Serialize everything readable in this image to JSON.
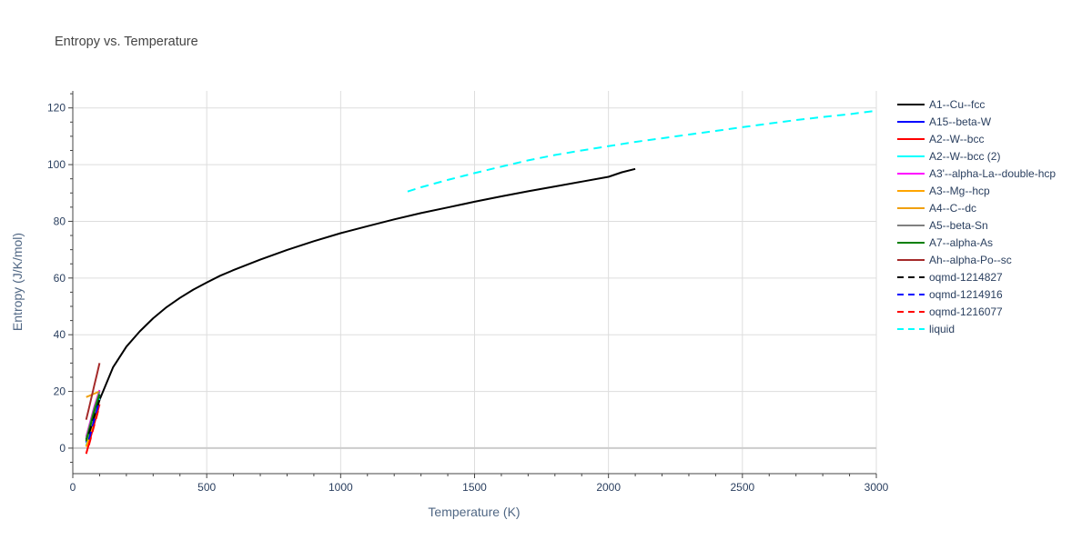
{
  "chart_data": {
    "type": "line",
    "title": "Entropy vs. Temperature",
    "xlabel": "Temperature (K)",
    "ylabel": "Entropy (J/K/mol)",
    "xlim": [
      0,
      3000
    ],
    "ylim": [
      -9,
      126
    ],
    "xticks": [
      0,
      500,
      1000,
      1500,
      2000,
      2500,
      3000
    ],
    "xtick_labels": [
      "0",
      "500",
      "1000",
      "1500",
      "2000",
      "2500",
      "3000"
    ],
    "yticks": [
      0,
      20,
      40,
      60,
      80,
      100,
      120
    ],
    "ytick_labels": [
      "0",
      "20",
      "40",
      "60",
      "80",
      "100",
      "120"
    ],
    "grid": true,
    "legend_position": "right",
    "series": [
      {
        "name": "A1--Cu--fcc",
        "color": "#000000",
        "dash": "solid",
        "x": [
          50,
          75,
          100,
          150,
          200,
          250,
          300,
          350,
          400,
          450,
          500,
          550,
          600,
          700,
          800,
          900,
          1000,
          1100,
          1200,
          1300,
          1400,
          1500,
          1600,
          1700,
          1800,
          1900,
          2000,
          2050,
          2100
        ],
        "y": [
          3,
          10,
          17,
          28.5,
          35.8,
          41.2,
          45.8,
          49.7,
          53,
          55.9,
          58.4,
          60.8,
          62.8,
          66.5,
          69.9,
          73,
          75.8,
          78.3,
          80.7,
          82.9,
          84.9,
          86.9,
          88.8,
          90.6,
          92.3,
          94,
          95.7,
          97.3,
          98.5
        ]
      },
      {
        "name": "A15--beta-W",
        "color": "#0000ff",
        "dash": "solid",
        "x": [
          50,
          60,
          70,
          80,
          90,
          100
        ],
        "y": [
          2,
          5,
          8.5,
          12,
          15.5,
          19
        ]
      },
      {
        "name": "A2--W--bcc",
        "color": "#ff0000",
        "dash": "solid",
        "x": [
          50,
          60,
          70,
          80,
          90,
          100
        ],
        "y": [
          -2,
          1.5,
          5,
          8.5,
          12,
          15.5
        ]
      },
      {
        "name": "A2--W--bcc (2)",
        "color": "#00ffff",
        "dash": "solid",
        "x": [
          50,
          60,
          70,
          80,
          90,
          100
        ],
        "y": [
          1,
          4,
          7,
          10.5,
          14,
          17.5
        ]
      },
      {
        "name": "A3'--alpha-La--double-hcp",
        "color": "#ff00ff",
        "dash": "solid",
        "x": [
          50,
          60,
          70,
          80,
          90,
          100
        ],
        "y": [
          4,
          7.5,
          11,
          14.5,
          17.5,
          20.5
        ]
      },
      {
        "name": "A3--Mg--hcp",
        "color": "#ffa500",
        "dash": "solid",
        "x": [
          50,
          60,
          70,
          80,
          90,
          100
        ],
        "y": [
          0.5,
          3.5,
          7,
          10.5,
          14,
          17
        ]
      },
      {
        "name": "A4--C--dc",
        "color": "#f0a010",
        "dash": "solid",
        "x": [
          50,
          60,
          70,
          80,
          90,
          100
        ],
        "y": [
          18,
          18.4,
          18.8,
          19.2,
          19.6,
          20
        ]
      },
      {
        "name": "A5--beta-Sn",
        "color": "#808080",
        "dash": "solid",
        "x": [
          50,
          60,
          70,
          80,
          90,
          100
        ],
        "y": [
          3.5,
          7,
          10.5,
          14,
          17,
          20
        ]
      },
      {
        "name": "A7--alpha-As",
        "color": "#008000",
        "dash": "solid",
        "x": [
          50,
          60,
          70,
          80,
          90,
          100
        ],
        "y": [
          2.5,
          6,
          9.5,
          13,
          16,
          19
        ]
      },
      {
        "name": "Ah--alpha-Po--sc",
        "color": "#a52a2a",
        "dash": "solid",
        "x": [
          50,
          60,
          70,
          80,
          90,
          100
        ],
        "y": [
          10,
          14,
          18,
          22,
          26,
          30
        ]
      },
      {
        "name": "oqmd-1214827",
        "color": "#000000",
        "dash": "dashed",
        "x": [
          60,
          70,
          80,
          90,
          100
        ],
        "y": [
          5,
          8,
          11,
          14,
          17
        ]
      },
      {
        "name": "oqmd-1214916",
        "color": "#0000ff",
        "dash": "dashed",
        "x": [
          60,
          70,
          80,
          90,
          100
        ],
        "y": [
          3,
          6.5,
          10,
          13.5,
          17
        ]
      },
      {
        "name": "oqmd-1216077",
        "color": "#ff0000",
        "dash": "dashed",
        "x": [
          60,
          70,
          80,
          90,
          100
        ],
        "y": [
          1,
          4.5,
          8,
          11.5,
          15
        ]
      },
      {
        "name": "liquid",
        "color": "#00ffff",
        "dash": "dashed",
        "x": [
          1250,
          1300,
          1400,
          1500,
          1600,
          1700,
          1800,
          1900,
          2000,
          2100,
          2200,
          2300,
          2400,
          2500,
          2600,
          2700,
          2800,
          2900,
          3000
        ],
        "y": [
          90.5,
          92,
          94.6,
          97,
          99.3,
          101.5,
          103.4,
          105,
          106.5,
          108,
          109.3,
          110.6,
          111.9,
          113.2,
          114.5,
          115.7,
          116.8,
          117.8,
          119
        ]
      }
    ]
  }
}
